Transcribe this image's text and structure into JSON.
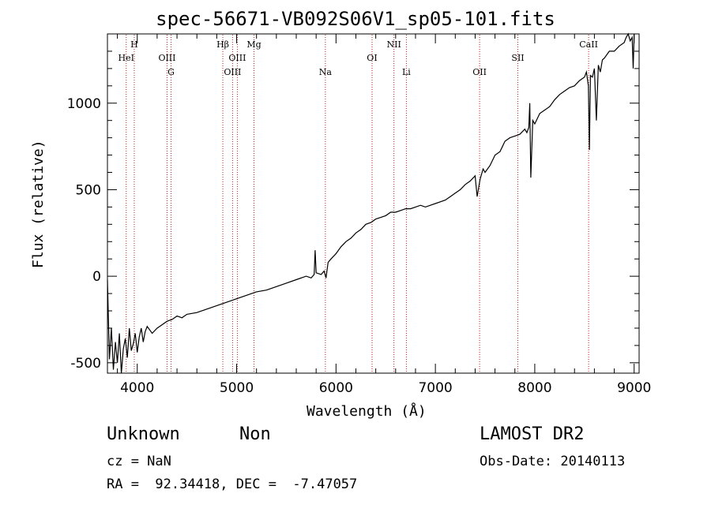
{
  "chart_data": {
    "type": "line",
    "title": "spec-56671-VB092S06V1_sp05-101.fits",
    "xlabel": "Wavelength (Å)",
    "ylabel": "Flux (relative)",
    "xlim": [
      3700,
      9050
    ],
    "ylim": [
      -560,
      1400
    ],
    "xticks": [
      4000,
      5000,
      6000,
      7000,
      8000,
      9000
    ],
    "yticks": [
      -500,
      0,
      500,
      1000
    ],
    "grid": false,
    "line_color": "#000000",
    "marker_color": "#b22222",
    "series": [
      {
        "x": [
          3700,
          3720,
          3740,
          3760,
          3780,
          3800,
          3820,
          3840,
          3860,
          3880,
          3900,
          3920,
          3940,
          3960,
          3980,
          4000,
          4020,
          4040,
          4060,
          4080,
          4100,
          4150,
          4200,
          4250,
          4300,
          4350,
          4400,
          4450,
          4500,
          4600,
          4700,
          4800,
          4900,
          5000,
          5100,
          5200,
          5300,
          5400,
          5500,
          5600,
          5700,
          5750,
          5780,
          5790,
          5800,
          5850,
          5880,
          5900,
          5920,
          5950,
          6000,
          6050,
          6100,
          6150,
          6200,
          6250,
          6300,
          6350,
          6400,
          6450,
          6500,
          6550,
          6600,
          6650,
          6700,
          6750,
          6800,
          6850,
          6900,
          6950,
          7000,
          7050,
          7100,
          7150,
          7200,
          7250,
          7300,
          7350,
          7400,
          7420,
          7450,
          7480,
          7500,
          7550,
          7600,
          7650,
          7700,
          7750,
          7800,
          7850,
          7900,
          7920,
          7940,
          7950,
          7960,
          7980,
          8000,
          8050,
          8100,
          8150,
          8200,
          8250,
          8300,
          8350,
          8400,
          8450,
          8500,
          8520,
          8540,
          8550,
          8560,
          8580,
          8600,
          8620,
          8640,
          8660,
          8680,
          8700,
          8750,
          8800,
          8850,
          8900,
          8920,
          8940,
          8960,
          8980,
          8990,
          9000
        ],
        "y": [
          -20,
          -480,
          -300,
          -540,
          -380,
          -500,
          -330,
          -560,
          -420,
          -360,
          -470,
          -300,
          -430,
          -390,
          -330,
          -440,
          -350,
          -300,
          -380,
          -320,
          -290,
          -330,
          -300,
          -280,
          -260,
          -250,
          -230,
          -240,
          -220,
          -210,
          -190,
          -170,
          -150,
          -130,
          -110,
          -90,
          -80,
          -60,
          -40,
          -20,
          0,
          -10,
          10,
          150,
          20,
          10,
          30,
          -10,
          80,
          100,
          130,
          170,
          200,
          220,
          250,
          270,
          300,
          310,
          330,
          340,
          350,
          370,
          370,
          380,
          390,
          390,
          400,
          410,
          400,
          410,
          420,
          430,
          440,
          460,
          480,
          500,
          530,
          550,
          580,
          460,
          560,
          620,
          600,
          640,
          700,
          720,
          780,
          800,
          810,
          820,
          850,
          830,
          860,
          1000,
          570,
          900,
          880,
          940,
          960,
          980,
          1020,
          1050,
          1070,
          1090,
          1100,
          1130,
          1150,
          1180,
          1100,
          730,
          1160,
          1150,
          1200,
          900,
          1220,
          1180,
          1250,
          1260,
          1300,
          1300,
          1330,
          1350,
          1380,
          1400,
          1360,
          1380,
          1200,
          1400
        ],
        "name": ""
      }
    ],
    "line_markers": [
      {
        "label": "HeI",
        "x": 3889,
        "row": 2
      },
      {
        "label": "H",
        "x": 3970,
        "row": 1
      },
      {
        "label": "OIII",
        "x": 4300,
        "row": 2
      },
      {
        "label": "G",
        "x": 4340,
        "row": 3
      },
      {
        "label": "Hβ",
        "x": 4861,
        "row": 1
      },
      {
        "label": "OIII",
        "x": 4959,
        "row": 3
      },
      {
        "label": "OIII",
        "x": 5007,
        "row": 2
      },
      {
        "label": "Mg",
        "x": 5175,
        "row": 1
      },
      {
        "label": "Na",
        "x": 5893,
        "row": 3
      },
      {
        "label": "OI",
        "x": 6363,
        "row": 2
      },
      {
        "label": "NII",
        "x": 6583,
        "row": 1
      },
      {
        "label": "Li",
        "x": 6708,
        "row": 3
      },
      {
        "label": "OII",
        "x": 7445,
        "row": 3
      },
      {
        "label": "SII",
        "x": 7830,
        "row": 2
      },
      {
        "label": "CaII",
        "x": 8542,
        "row": 1
      }
    ]
  },
  "footer": {
    "object_class": "Unknown",
    "subclass": "Non",
    "redshift": "cz = NaN",
    "coordinates": "RA =  92.34418, DEC =  -7.47057",
    "survey": "LAMOST DR2",
    "obs_date": "Obs-Date: 20140113"
  }
}
